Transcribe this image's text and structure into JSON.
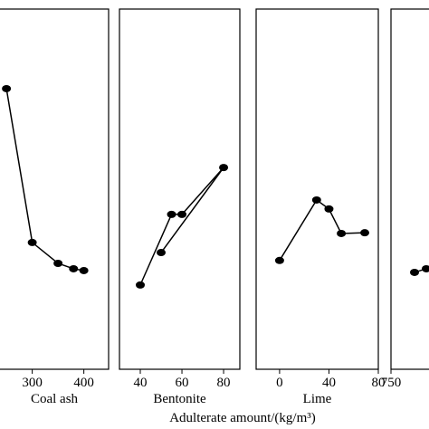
{
  "xlabel": "Adulterate amount/(kg/m³)",
  "chart_data": [
    {
      "type": "line",
      "xlabel": "Coal ash",
      "xlim": [
        234,
        448
      ],
      "ylim": [
        0,
        100
      ],
      "xticks": [
        300,
        400
      ],
      "series": [
        {
          "color": "#000000",
          "x": [
            250,
            300,
            350,
            380,
            400
          ],
          "values": [
            77.9,
            35.2,
            29.4,
            27.9,
            27.4
          ]
        }
      ]
    },
    {
      "type": "line",
      "xlabel": "Bentonite",
      "xlim": [
        30,
        87.8
      ],
      "ylim": [
        0,
        100
      ],
      "xticks": [
        40,
        60,
        80
      ],
      "series": [
        {
          "color": "#000000",
          "x": [
            40,
            55,
            60,
            80,
            50
          ],
          "values": [
            23.4,
            43.0,
            43.0,
            56.0,
            32.4
          ]
        }
      ]
    },
    {
      "type": "line",
      "xlabel": "Lime",
      "xlim": [
        -19,
        80
      ],
      "ylim": [
        0,
        100
      ],
      "xticks": [
        0,
        40,
        80
      ],
      "series": [
        {
          "color": "#000000",
          "x": [
            0,
            30,
            40,
            50,
            69
          ],
          "values": [
            30.2,
            47.0,
            44.5,
            37.7,
            37.9
          ]
        }
      ]
    },
    {
      "type": "line",
      "xlim": [
        750,
        883
      ],
      "ylim": [
        0,
        100
      ],
      "xticks": [
        750
      ],
      "series": [
        {
          "color": "#000000",
          "x": [
            776,
            789
          ],
          "values": [
            26.9,
            27.9
          ]
        }
      ]
    }
  ]
}
